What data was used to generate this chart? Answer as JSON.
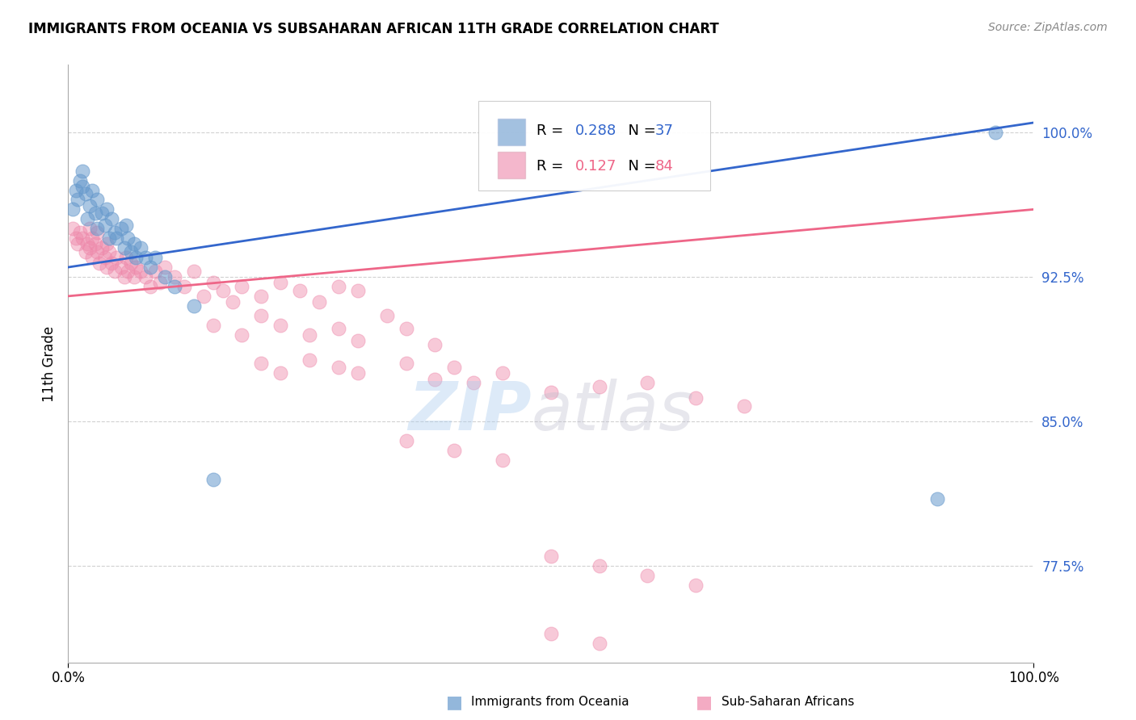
{
  "title": "IMMIGRANTS FROM OCEANIA VS SUBSAHARAN AFRICAN 11TH GRADE CORRELATION CHART",
  "source": "Source: ZipAtlas.com",
  "ylabel": "11th Grade",
  "xmin": 0.0,
  "xmax": 1.0,
  "ymin": 0.725,
  "ymax": 1.035,
  "ytick_vals": [
    0.775,
    0.85,
    0.925,
    1.0
  ],
  "ytick_labels": [
    "77.5%",
    "85.0%",
    "92.5%",
    "100.0%"
  ],
  "blue_color": "#6699CC",
  "pink_color": "#EE88AA",
  "line_blue": "#3366CC",
  "line_pink": "#EE6688",
  "grid_color": "#CCCCCC",
  "blue_line_x0": 0.0,
  "blue_line_y0": 0.93,
  "blue_line_x1": 1.0,
  "blue_line_y1": 1.005,
  "pink_line_x0": 0.0,
  "pink_line_y0": 0.915,
  "pink_line_x1": 1.0,
  "pink_line_y1": 0.96,
  "blue_points_x": [
    0.005,
    0.008,
    0.01,
    0.012,
    0.015,
    0.015,
    0.018,
    0.02,
    0.022,
    0.025,
    0.028,
    0.03,
    0.03,
    0.035,
    0.038,
    0.04,
    0.042,
    0.045,
    0.048,
    0.05,
    0.055,
    0.058,
    0.06,
    0.062,
    0.065,
    0.068,
    0.07,
    0.075,
    0.08,
    0.085,
    0.09,
    0.1,
    0.11,
    0.13,
    0.15,
    0.9,
    0.96
  ],
  "blue_points_y": [
    0.96,
    0.97,
    0.965,
    0.975,
    0.98,
    0.972,
    0.968,
    0.955,
    0.962,
    0.97,
    0.958,
    0.965,
    0.95,
    0.958,
    0.952,
    0.96,
    0.945,
    0.955,
    0.948,
    0.945,
    0.95,
    0.94,
    0.952,
    0.945,
    0.938,
    0.942,
    0.935,
    0.94,
    0.935,
    0.93,
    0.935,
    0.925,
    0.92,
    0.91,
    0.82,
    0.81,
    1.0
  ],
  "pink_points_x": [
    0.005,
    0.008,
    0.01,
    0.012,
    0.015,
    0.018,
    0.02,
    0.022,
    0.022,
    0.025,
    0.025,
    0.028,
    0.03,
    0.03,
    0.032,
    0.035,
    0.038,
    0.04,
    0.04,
    0.042,
    0.045,
    0.048,
    0.05,
    0.055,
    0.058,
    0.06,
    0.062,
    0.065,
    0.068,
    0.07,
    0.075,
    0.08,
    0.085,
    0.09,
    0.095,
    0.1,
    0.11,
    0.12,
    0.13,
    0.14,
    0.15,
    0.16,
    0.17,
    0.18,
    0.2,
    0.22,
    0.24,
    0.26,
    0.28,
    0.3,
    0.15,
    0.18,
    0.2,
    0.22,
    0.25,
    0.28,
    0.3,
    0.33,
    0.35,
    0.38,
    0.2,
    0.22,
    0.25,
    0.28,
    0.3,
    0.35,
    0.38,
    0.4,
    0.42,
    0.45,
    0.5,
    0.55,
    0.6,
    0.65,
    0.7,
    0.5,
    0.55,
    0.6,
    0.65,
    0.35,
    0.4,
    0.45,
    0.5,
    0.55
  ],
  "pink_points_y": [
    0.95,
    0.945,
    0.942,
    0.948,
    0.945,
    0.938,
    0.942,
    0.95,
    0.94,
    0.945,
    0.935,
    0.942,
    0.938,
    0.948,
    0.932,
    0.94,
    0.935,
    0.942,
    0.93,
    0.938,
    0.932,
    0.928,
    0.935,
    0.93,
    0.925,
    0.935,
    0.928,
    0.932,
    0.925,
    0.93,
    0.928,
    0.925,
    0.92,
    0.928,
    0.922,
    0.93,
    0.925,
    0.92,
    0.928,
    0.915,
    0.922,
    0.918,
    0.912,
    0.92,
    0.915,
    0.922,
    0.918,
    0.912,
    0.92,
    0.918,
    0.9,
    0.895,
    0.905,
    0.9,
    0.895,
    0.898,
    0.892,
    0.905,
    0.898,
    0.89,
    0.88,
    0.875,
    0.882,
    0.878,
    0.875,
    0.88,
    0.872,
    0.878,
    0.87,
    0.875,
    0.865,
    0.868,
    0.87,
    0.862,
    0.858,
    0.78,
    0.775,
    0.77,
    0.765,
    0.84,
    0.835,
    0.83,
    0.74,
    0.735
  ]
}
